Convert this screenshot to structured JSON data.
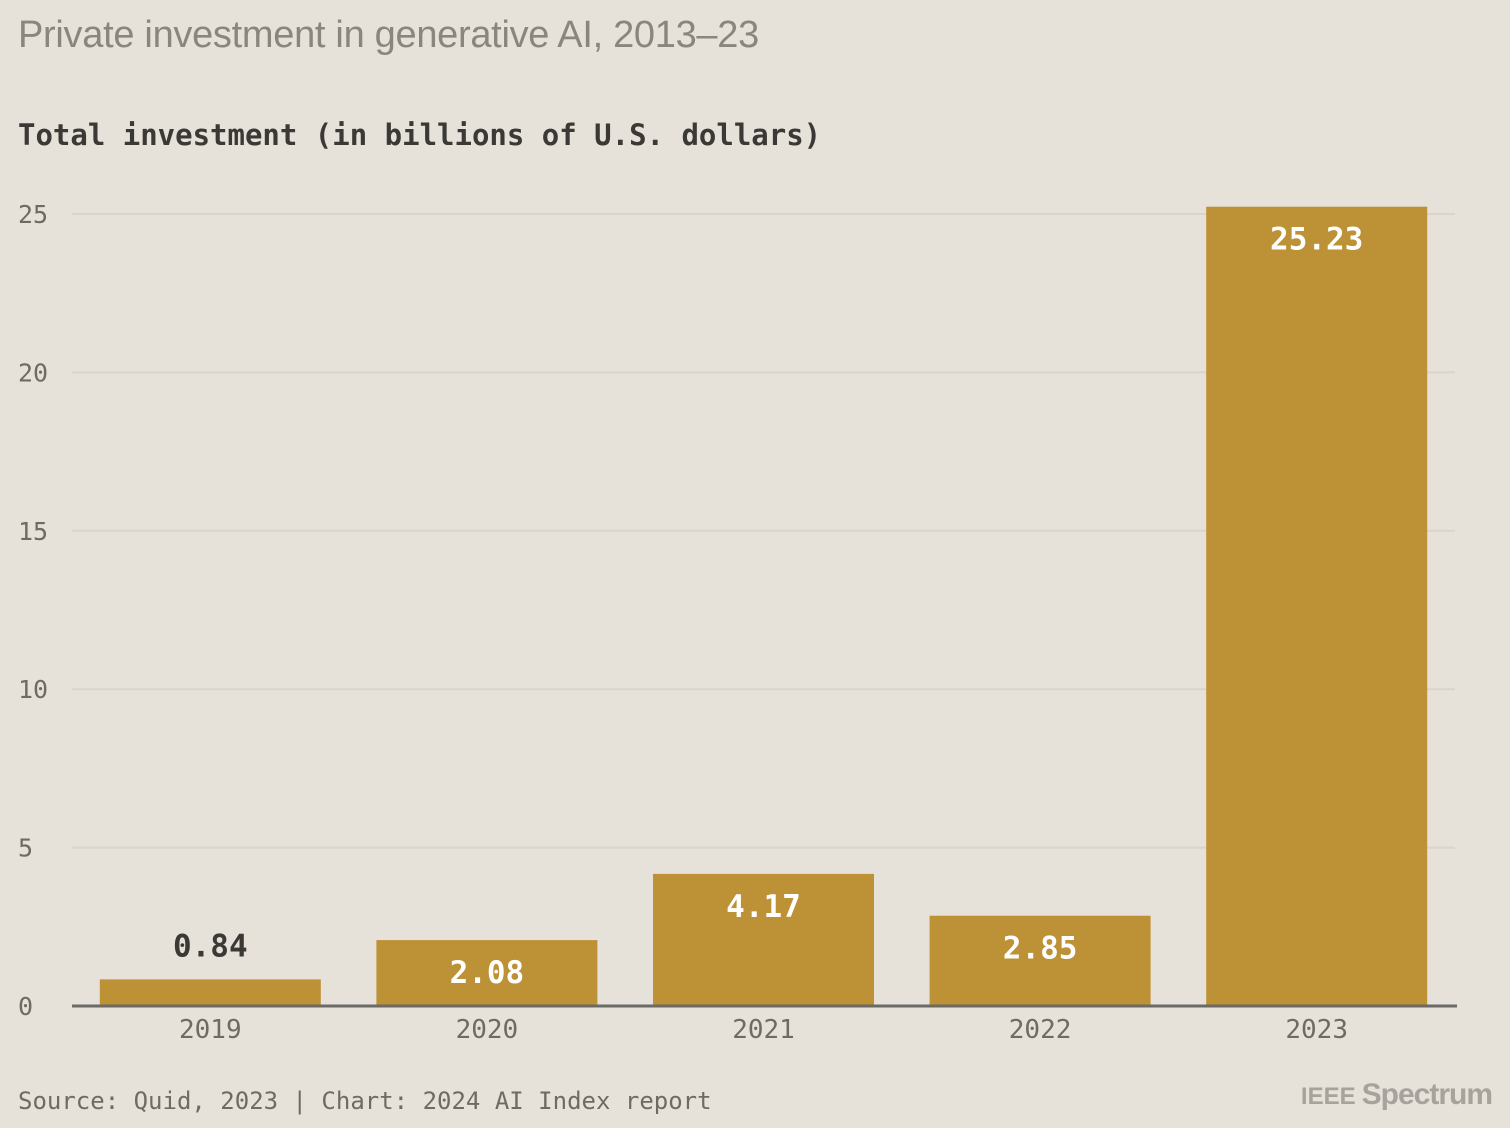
{
  "header": {
    "title": "Private investment in generative AI, 2013–23",
    "subtitle": "Total investment (in billions of U.S. dollars)"
  },
  "footer": {
    "source": "Source: Quid, 2023 | Chart: 2024 AI Index report",
    "brand_prefix": "IEEE",
    "brand_name": "Spectrum"
  },
  "colors": {
    "background": "#e6e1d9",
    "bar": "#bd9135",
    "gridline": "#d9d4cc",
    "axis": "#6b6a67",
    "label_inside": "#ffffff",
    "label_outside": "#3b3935",
    "tick": "#6f6b64"
  },
  "chart_data": {
    "type": "bar",
    "categories": [
      "2019",
      "2020",
      "2021",
      "2022",
      "2023"
    ],
    "values": [
      0.84,
      2.08,
      4.17,
      2.85,
      25.23
    ],
    "value_labels": [
      "0.84",
      "2.08",
      "4.17",
      "2.85",
      "25.23"
    ],
    "title": "Private investment in generative AI, 2013–23",
    "ylabel": "Total investment (in billions of U.S. dollars)",
    "xlabel": "",
    "ylim": [
      0,
      25
    ],
    "yticks": [
      0,
      5,
      10,
      15,
      20,
      25
    ],
    "ytick_labels": [
      "0",
      "5",
      "10",
      "15",
      "20",
      "25"
    ],
    "grid": true,
    "legend": "none"
  }
}
